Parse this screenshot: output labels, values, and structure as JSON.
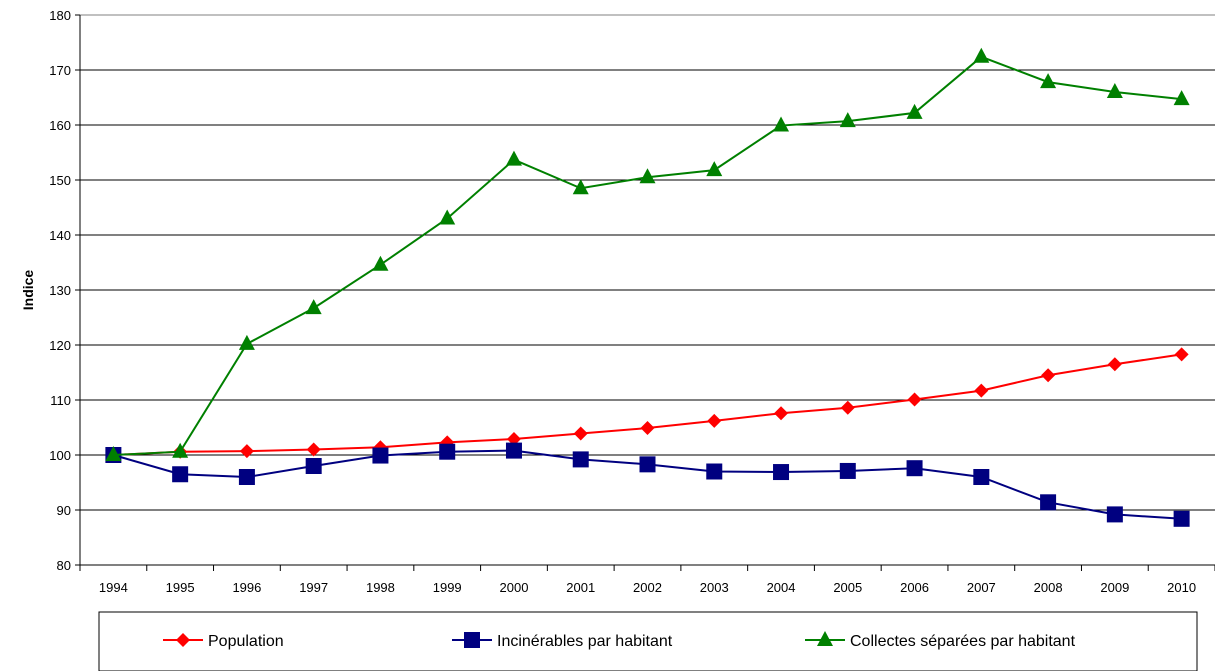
{
  "chart_data": {
    "type": "line",
    "title": "",
    "xlabel": "",
    "ylabel": "Indice",
    "ylim": [
      80,
      180
    ],
    "yticks": [
      80,
      90,
      100,
      110,
      120,
      130,
      140,
      150,
      160,
      170,
      180
    ],
    "grid": true,
    "legend_position": "bottom",
    "categories": [
      "1994",
      "1995",
      "1996",
      "1997",
      "1998",
      "1999",
      "2000",
      "2001",
      "2002",
      "2003",
      "2004",
      "2005",
      "2006",
      "2007",
      "2008",
      "2009",
      "2010"
    ],
    "series": [
      {
        "name": "Population",
        "color": "#ff0000",
        "marker": "diamond",
        "values": [
          100,
          100.6,
          100.7,
          101.0,
          101.4,
          102.3,
          102.9,
          103.9,
          104.9,
          106.2,
          107.6,
          108.6,
          110.1,
          111.7,
          114.5,
          116.5,
          118.3
        ]
      },
      {
        "name": "Incinérables par habitant",
        "color": "#000080",
        "marker": "square",
        "values": [
          100,
          96.5,
          96.0,
          98.0,
          99.9,
          100.6,
          100.8,
          99.2,
          98.3,
          97.0,
          96.9,
          97.1,
          97.6,
          96.0,
          91.4,
          89.2,
          88.4
        ]
      },
      {
        "name": "Collectes séparées par habitant",
        "color": "#008000",
        "marker": "triangle",
        "values": [
          100,
          100.6,
          120.2,
          126.7,
          134.6,
          143.0,
          153.7,
          148.5,
          150.5,
          151.8,
          159.9,
          160.7,
          162.2,
          172.4,
          167.8,
          166.0,
          164.7
        ]
      }
    ]
  }
}
